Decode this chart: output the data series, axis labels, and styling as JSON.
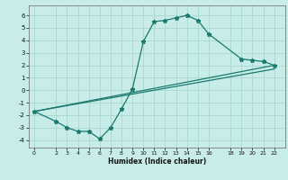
{
  "xlabel": "Humidex (Indice chaleur)",
  "bg_color": "#c8ece8",
  "grid_color": "#a8d8d0",
  "line_color": "#1a7a6e",
  "xlim": [
    -0.5,
    23
  ],
  "ylim": [
    -4.6,
    6.8
  ],
  "xticks": [
    0,
    2,
    3,
    4,
    5,
    6,
    7,
    8,
    9,
    10,
    11,
    12,
    13,
    14,
    15,
    16,
    18,
    19,
    20,
    21,
    22
  ],
  "yticks": [
    -4,
    -3,
    -2,
    -1,
    0,
    1,
    2,
    3,
    4,
    5,
    6
  ],
  "line1_x": [
    0,
    2,
    3,
    4,
    5,
    6,
    7,
    8,
    9,
    10,
    11,
    12,
    13,
    14,
    15,
    16,
    19,
    20,
    21,
    22
  ],
  "line1_y": [
    -1.7,
    -2.5,
    -3.0,
    -3.3,
    -3.3,
    -3.9,
    -3.0,
    -1.5,
    0.1,
    3.9,
    5.5,
    5.6,
    5.8,
    6.0,
    5.6,
    4.5,
    2.5,
    2.4,
    2.3,
    2.0
  ],
  "line2_x": [
    0,
    22
  ],
  "line2_y": [
    -1.7,
    2.0
  ],
  "line3_x": [
    0,
    22
  ],
  "line3_y": [
    -1.7,
    1.7
  ]
}
